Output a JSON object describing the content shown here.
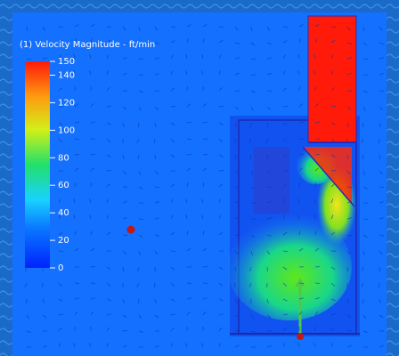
{
  "legend": {
    "title": "(1) Velocity Magnitude - ft/min",
    "range": [
      0,
      150
    ],
    "ticks": [
      150,
      140,
      120,
      100,
      80,
      60,
      40,
      20,
      0
    ]
  }
}
